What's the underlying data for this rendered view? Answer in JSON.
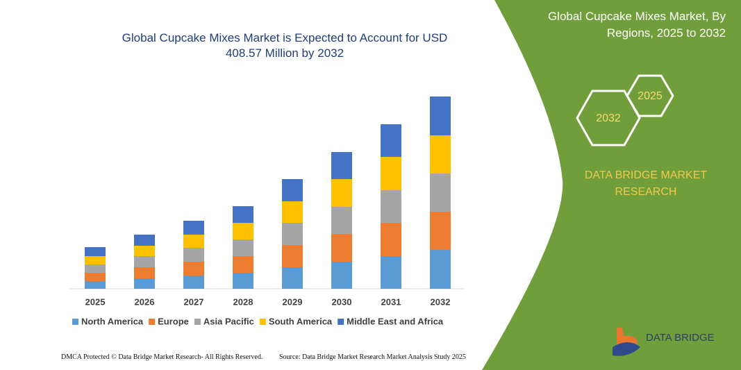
{
  "chart_data": {
    "type": "stacked_bar",
    "title": "Global Cupcake Mixes Market is Expected to Account for USD 408.57 Million by 2032",
    "categories": [
      "2025",
      "2026",
      "2027",
      "2028",
      "2029",
      "2030",
      "2031",
      "2032"
    ],
    "series": [
      {
        "name": "North America",
        "color": "#5b9bd5",
        "values": [
          11,
          15,
          19,
          23,
          31,
          39,
          47,
          56
        ]
      },
      {
        "name": "Europe",
        "color": "#ed7d31",
        "values": [
          12,
          16,
          20,
          24,
          32,
          40,
          48,
          55
        ]
      },
      {
        "name": "Asia Pacific",
        "color": "#a5a5a5",
        "values": [
          12,
          16,
          20,
          24,
          32,
          39,
          47,
          55
        ]
      },
      {
        "name": "South America",
        "color": "#ffc000",
        "values": [
          12,
          15,
          19,
          24,
          31,
          40,
          48,
          55
        ]
      },
      {
        "name": "Middle East and Africa",
        "color": "#4472c4",
        "values": [
          13,
          16,
          20,
          24,
          32,
          39,
          47,
          56
        ]
      }
    ],
    "ylim": [
      0,
      280
    ],
    "legend": "bottom"
  },
  "panel": {
    "title": "Global Cupcake Mixes Market, By Regions, 2025 to 2032",
    "hex_large": "2032",
    "hex_small": "2025",
    "brand": [
      "DATA BRIDGE MARKET",
      "RESEARCH"
    ],
    "logo": "DATA BRIDGE"
  },
  "footer": {
    "left": "DMCA Protected © Data Bridge Market Research- All Rights Reserved.",
    "right": "Source: Data Bridge Market Research  Market Analysis Study 2025"
  }
}
